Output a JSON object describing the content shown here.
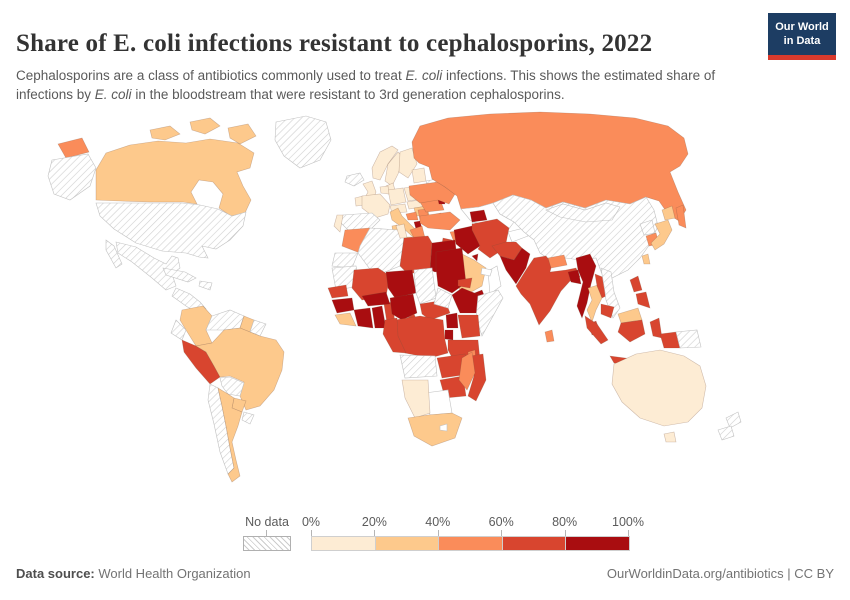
{
  "header": {
    "title": "Share of E. coli infections resistant to cephalosporins, 2022",
    "subtitle_segments": [
      {
        "text": "Cephalosporins are a class of antibiotics commonly used to treat "
      },
      {
        "text": "E. coli",
        "italic": true
      },
      {
        "text": " infections. This shows the estimated share of infections by "
      },
      {
        "text": "E. coli",
        "italic": true
      },
      {
        "text": " in the bloodstream that were resistant to 3rd generation cephalosporins."
      }
    ],
    "logo": {
      "line1": "Our World",
      "line2": "in Data",
      "bg_color": "#1d3d63",
      "accent_color": "#d93a2d"
    }
  },
  "legend": {
    "no_data_label": "No data",
    "ticks": [
      "0%",
      "20%",
      "40%",
      "60%",
      "80%",
      "100%"
    ]
  },
  "footer": {
    "source_label": "Data source:",
    "source_value": " World Health Organization",
    "right_text": "OurWorldinData.org/antibiotics | CC BY"
  },
  "chart_data": {
    "type": "heatmap",
    "subtype": "choropleth_world_map",
    "title": "Share of E. coli infections resistant to cephalosporins",
    "year": "2022",
    "unit": "%",
    "legend_position": "bottom",
    "color_bins": [
      {
        "id": "0-20",
        "range": "0%-20%",
        "color": "#fdecd4"
      },
      {
        "id": "20-40",
        "range": "20%-40%",
        "color": "#fdc98c"
      },
      {
        "id": "40-60",
        "range": "40%-60%",
        "color": "#fa8c5a"
      },
      {
        "id": "60-80",
        "range": "60%-80%",
        "color": "#d8452f"
      },
      {
        "id": "80-100",
        "range": "80%-100%",
        "color": "#a90d10"
      },
      {
        "id": "no-data",
        "range": "No data",
        "color": "hatch"
      },
      {
        "id": "no-data-plain",
        "range": "No data",
        "color": "#ffffff"
      }
    ],
    "regions": [
      {
        "id": "greenland",
        "name": "Greenland",
        "bin": "no-data"
      },
      {
        "id": "alaska",
        "name": "Alaska (United States)",
        "bin": "no-data"
      },
      {
        "id": "usa",
        "name": "United States",
        "bin": "no-data"
      },
      {
        "id": "canada",
        "name": "Canada",
        "bin": "20-40"
      },
      {
        "id": "mexico",
        "name": "Mexico",
        "bin": "no-data"
      },
      {
        "id": "central-america",
        "name": "Central America",
        "bin": "no-data"
      },
      {
        "id": "cuba",
        "name": "Cuba",
        "bin": "no-data"
      },
      {
        "id": "hispaniola",
        "name": "Hispaniola",
        "bin": "no-data"
      },
      {
        "id": "colombia",
        "name": "Colombia",
        "bin": "20-40"
      },
      {
        "id": "venezuela",
        "name": "Venezuela",
        "bin": "no-data"
      },
      {
        "id": "guyana",
        "name": "Guyana",
        "bin": "20-40"
      },
      {
        "id": "suriname-french-guiana",
        "name": "Suriname and French Guiana",
        "bin": "no-data"
      },
      {
        "id": "ecuador",
        "name": "Ecuador",
        "bin": "no-data"
      },
      {
        "id": "peru",
        "name": "Peru",
        "bin": "60-80"
      },
      {
        "id": "brazil",
        "name": "Brazil",
        "bin": "20-40"
      },
      {
        "id": "bolivia",
        "name": "Bolivia",
        "bin": "no-data"
      },
      {
        "id": "paraguay",
        "name": "Paraguay",
        "bin": "20-40"
      },
      {
        "id": "chile",
        "name": "Chile",
        "bin": "no-data"
      },
      {
        "id": "argentina",
        "name": "Argentina",
        "bin": "20-40"
      },
      {
        "id": "uruguay",
        "name": "Uruguay",
        "bin": "no-data"
      },
      {
        "id": "iceland",
        "name": "Iceland",
        "bin": "no-data"
      },
      {
        "id": "united-kingdom",
        "name": "United Kingdom",
        "bin": "0-20"
      },
      {
        "id": "ireland",
        "name": "Ireland",
        "bin": "0-20"
      },
      {
        "id": "norway",
        "name": "Norway",
        "bin": "0-20"
      },
      {
        "id": "sweden",
        "name": "Sweden",
        "bin": "0-20"
      },
      {
        "id": "finland",
        "name": "Finland",
        "bin": "0-20"
      },
      {
        "id": "denmark",
        "name": "Denmark",
        "bin": "0-20"
      },
      {
        "id": "baltic-states",
        "name": "Baltic states",
        "bin": "0-20"
      },
      {
        "id": "benelux",
        "name": "Benelux",
        "bin": "0-20"
      },
      {
        "id": "france",
        "name": "France",
        "bin": "0-20"
      },
      {
        "id": "spain",
        "name": "Spain",
        "bin": "no-data"
      },
      {
        "id": "portugal",
        "name": "Portugal",
        "bin": "0-20"
      },
      {
        "id": "germany",
        "name": "Germany",
        "bin": "0-20"
      },
      {
        "id": "poland",
        "name": "Poland",
        "bin": "0-20"
      },
      {
        "id": "czechia-slovakia",
        "name": "Czechia and Slovakia",
        "bin": "0-20"
      },
      {
        "id": "switzerland-austria",
        "name": "Switzerland and Austria",
        "bin": "0-20"
      },
      {
        "id": "hungary",
        "name": "Hungary",
        "bin": "20-40"
      },
      {
        "id": "italy",
        "name": "Italy",
        "bin": "20-40"
      },
      {
        "id": "croatia",
        "name": "Croatia",
        "bin": "40-60"
      },
      {
        "id": "serbia",
        "name": "Serbia",
        "bin": "40-60"
      },
      {
        "id": "albania",
        "name": "Albania",
        "bin": "80-100"
      },
      {
        "id": "greece",
        "name": "Greece",
        "bin": "40-60"
      },
      {
        "id": "bulgaria",
        "name": "Bulgaria",
        "bin": "40-60"
      },
      {
        "id": "romania",
        "name": "Romania",
        "bin": "40-60"
      },
      {
        "id": "moldova",
        "name": "Moldova",
        "bin": "80-100"
      },
      {
        "id": "ukraine",
        "name": "Ukraine",
        "bin": "40-60"
      },
      {
        "id": "belarus",
        "name": "Belarus",
        "bin": "no-data"
      },
      {
        "id": "russia",
        "name": "Russia",
        "bin": "40-60"
      },
      {
        "id": "kazakhstan",
        "name": "Kazakhstan",
        "bin": "no-data-plain"
      },
      {
        "id": "uzbekistan-turkmenistan",
        "name": "Uzbekistan and Turkmenistan",
        "bin": "no-data-plain"
      },
      {
        "id": "kyrgyzstan-tajikistan",
        "name": "Kyrgyzstan and Tajikistan",
        "bin": "no-data-plain"
      },
      {
        "id": "georgia-caucasus",
        "name": "Caucasus",
        "bin": "80-100"
      },
      {
        "id": "turkey",
        "name": "Turkey",
        "bin": "40-60"
      },
      {
        "id": "syria",
        "name": "Syria",
        "bin": "40-60"
      },
      {
        "id": "jordan",
        "name": "Jordan",
        "bin": "60-80"
      },
      {
        "id": "iraq",
        "name": "Iraq",
        "bin": "80-100"
      },
      {
        "id": "iran",
        "name": "Iran",
        "bin": "60-80"
      },
      {
        "id": "kuwait",
        "name": "Kuwait",
        "bin": "80-100"
      },
      {
        "id": "saudi-arabia",
        "name": "Saudi Arabia",
        "bin": "20-40"
      },
      {
        "id": "yemen",
        "name": "Yemen",
        "bin": "80-100"
      },
      {
        "id": "oman",
        "name": "Oman",
        "bin": "no-data-plain"
      },
      {
        "id": "united-arab-emirates",
        "name": "United Arab Emirates",
        "bin": "no-data-plain"
      },
      {
        "id": "morocco",
        "name": "Morocco",
        "bin": "40-60"
      },
      {
        "id": "western-sahara",
        "name": "Western Sahara",
        "bin": "no-data"
      },
      {
        "id": "algeria",
        "name": "Algeria",
        "bin": "no-data"
      },
      {
        "id": "tunisia",
        "name": "Tunisia",
        "bin": "0-20"
      },
      {
        "id": "libya",
        "name": "Libya",
        "bin": "60-80"
      },
      {
        "id": "egypt",
        "name": "Egypt",
        "bin": "80-100"
      },
      {
        "id": "mauritania",
        "name": "Mauritania",
        "bin": "no-data"
      },
      {
        "id": "mali",
        "name": "Mali",
        "bin": "60-80"
      },
      {
        "id": "senegal",
        "name": "Senegal",
        "bin": "60-80"
      },
      {
        "id": "guinea",
        "name": "Guinea",
        "bin": "80-100"
      },
      {
        "id": "sierra-leone-liberia",
        "name": "Sierra Leone and Liberia",
        "bin": "20-40"
      },
      {
        "id": "cote-divoire",
        "name": "Cote d'Ivoire",
        "bin": "80-100"
      },
      {
        "id": "ghana",
        "name": "Ghana",
        "bin": "80-100"
      },
      {
        "id": "togo-benin",
        "name": "Togo and Benin",
        "bin": "60-80"
      },
      {
        "id": "burkina-faso",
        "name": "Burkina Faso",
        "bin": "80-100"
      },
      {
        "id": "niger",
        "name": "Niger",
        "bin": "80-100"
      },
      {
        "id": "nigeria",
        "name": "Nigeria",
        "bin": "80-100"
      },
      {
        "id": "chad",
        "name": "Chad",
        "bin": "no-data"
      },
      {
        "id": "cameroon",
        "name": "Cameroon",
        "bin": "60-80"
      },
      {
        "id": "central-african-republic",
        "name": "Central African Republic",
        "bin": "60-80"
      },
      {
        "id": "sudan",
        "name": "Sudan",
        "bin": "80-100"
      },
      {
        "id": "south-sudan",
        "name": "South Sudan",
        "bin": "no-data"
      },
      {
        "id": "eritrea",
        "name": "Eritrea",
        "bin": "60-80"
      },
      {
        "id": "ethiopia",
        "name": "Ethiopia",
        "bin": "80-100"
      },
      {
        "id": "somalia",
        "name": "Somalia",
        "bin": "no-data"
      },
      {
        "id": "uganda",
        "name": "Uganda",
        "bin": "80-100"
      },
      {
        "id": "kenya",
        "name": "Kenya",
        "bin": "60-80"
      },
      {
        "id": "rwanda-burundi",
        "name": "Rwanda and Burundi",
        "bin": "80-100"
      },
      {
        "id": "dr-congo",
        "name": "Democratic Republic of Congo",
        "bin": "60-80"
      },
      {
        "id": "gabon-congo",
        "name": "Gabon and Congo",
        "bin": "60-80"
      },
      {
        "id": "tanzania",
        "name": "Tanzania",
        "bin": "60-80"
      },
      {
        "id": "angola",
        "name": "Angola",
        "bin": "no-data"
      },
      {
        "id": "zambia",
        "name": "Zambia",
        "bin": "60-80"
      },
      {
        "id": "malawi",
        "name": "Malawi",
        "bin": "40-60"
      },
      {
        "id": "mozambique",
        "name": "Mozambique",
        "bin": "60-80"
      },
      {
        "id": "zimbabwe",
        "name": "Zimbabwe",
        "bin": "60-80"
      },
      {
        "id": "botswana",
        "name": "Botswana",
        "bin": "no-data-plain"
      },
      {
        "id": "namibia",
        "name": "Namibia",
        "bin": "0-20"
      },
      {
        "id": "south-africa",
        "name": "South Africa",
        "bin": "20-40"
      },
      {
        "id": "lesotho",
        "name": "Lesotho",
        "bin": "no-data-plain"
      },
      {
        "id": "madagascar",
        "name": "Madagascar",
        "bin": "40-60"
      },
      {
        "id": "afghanistan",
        "name": "Afghanistan",
        "bin": "60-80"
      },
      {
        "id": "pakistan",
        "name": "Pakistan",
        "bin": "80-100"
      },
      {
        "id": "india",
        "name": "India",
        "bin": "60-80"
      },
      {
        "id": "nepal",
        "name": "Nepal",
        "bin": "40-60"
      },
      {
        "id": "bangladesh",
        "name": "Bangladesh",
        "bin": "80-100"
      },
      {
        "id": "sri-lanka",
        "name": "Sri Lanka",
        "bin": "40-60"
      },
      {
        "id": "myanmar",
        "name": "Myanmar",
        "bin": "80-100"
      },
      {
        "id": "thailand",
        "name": "Thailand",
        "bin": "20-40"
      },
      {
        "id": "laos",
        "name": "Laos",
        "bin": "60-80"
      },
      {
        "id": "vietnam",
        "name": "Vietnam",
        "bin": "no-data"
      },
      {
        "id": "cambodia",
        "name": "Cambodia",
        "bin": "60-80"
      },
      {
        "id": "malaysia",
        "name": "Malaysia",
        "bin": "60-80"
      },
      {
        "id": "malaysia-borneo",
        "name": "Malaysia (Borneo)",
        "bin": "20-40"
      },
      {
        "id": "indonesia",
        "name": "Indonesia",
        "bin": "60-80"
      },
      {
        "id": "philippines",
        "name": "Philippines",
        "bin": "60-80"
      },
      {
        "id": "papua-new-guinea",
        "name": "Papua New Guinea",
        "bin": "no-data"
      },
      {
        "id": "china",
        "name": "China",
        "bin": "no-data"
      },
      {
        "id": "mongolia",
        "name": "Mongolia",
        "bin": "no-data"
      },
      {
        "id": "north-korea",
        "name": "North Korea",
        "bin": "no-data"
      },
      {
        "id": "south-korea",
        "name": "South Korea",
        "bin": "40-60"
      },
      {
        "id": "japan",
        "name": "Japan",
        "bin": "20-40"
      },
      {
        "id": "taiwan",
        "name": "Taiwan",
        "bin": "20-40"
      },
      {
        "id": "australia",
        "name": "Australia",
        "bin": "0-20"
      },
      {
        "id": "new-zealand",
        "name": "New Zealand",
        "bin": "no-data"
      }
    ]
  }
}
